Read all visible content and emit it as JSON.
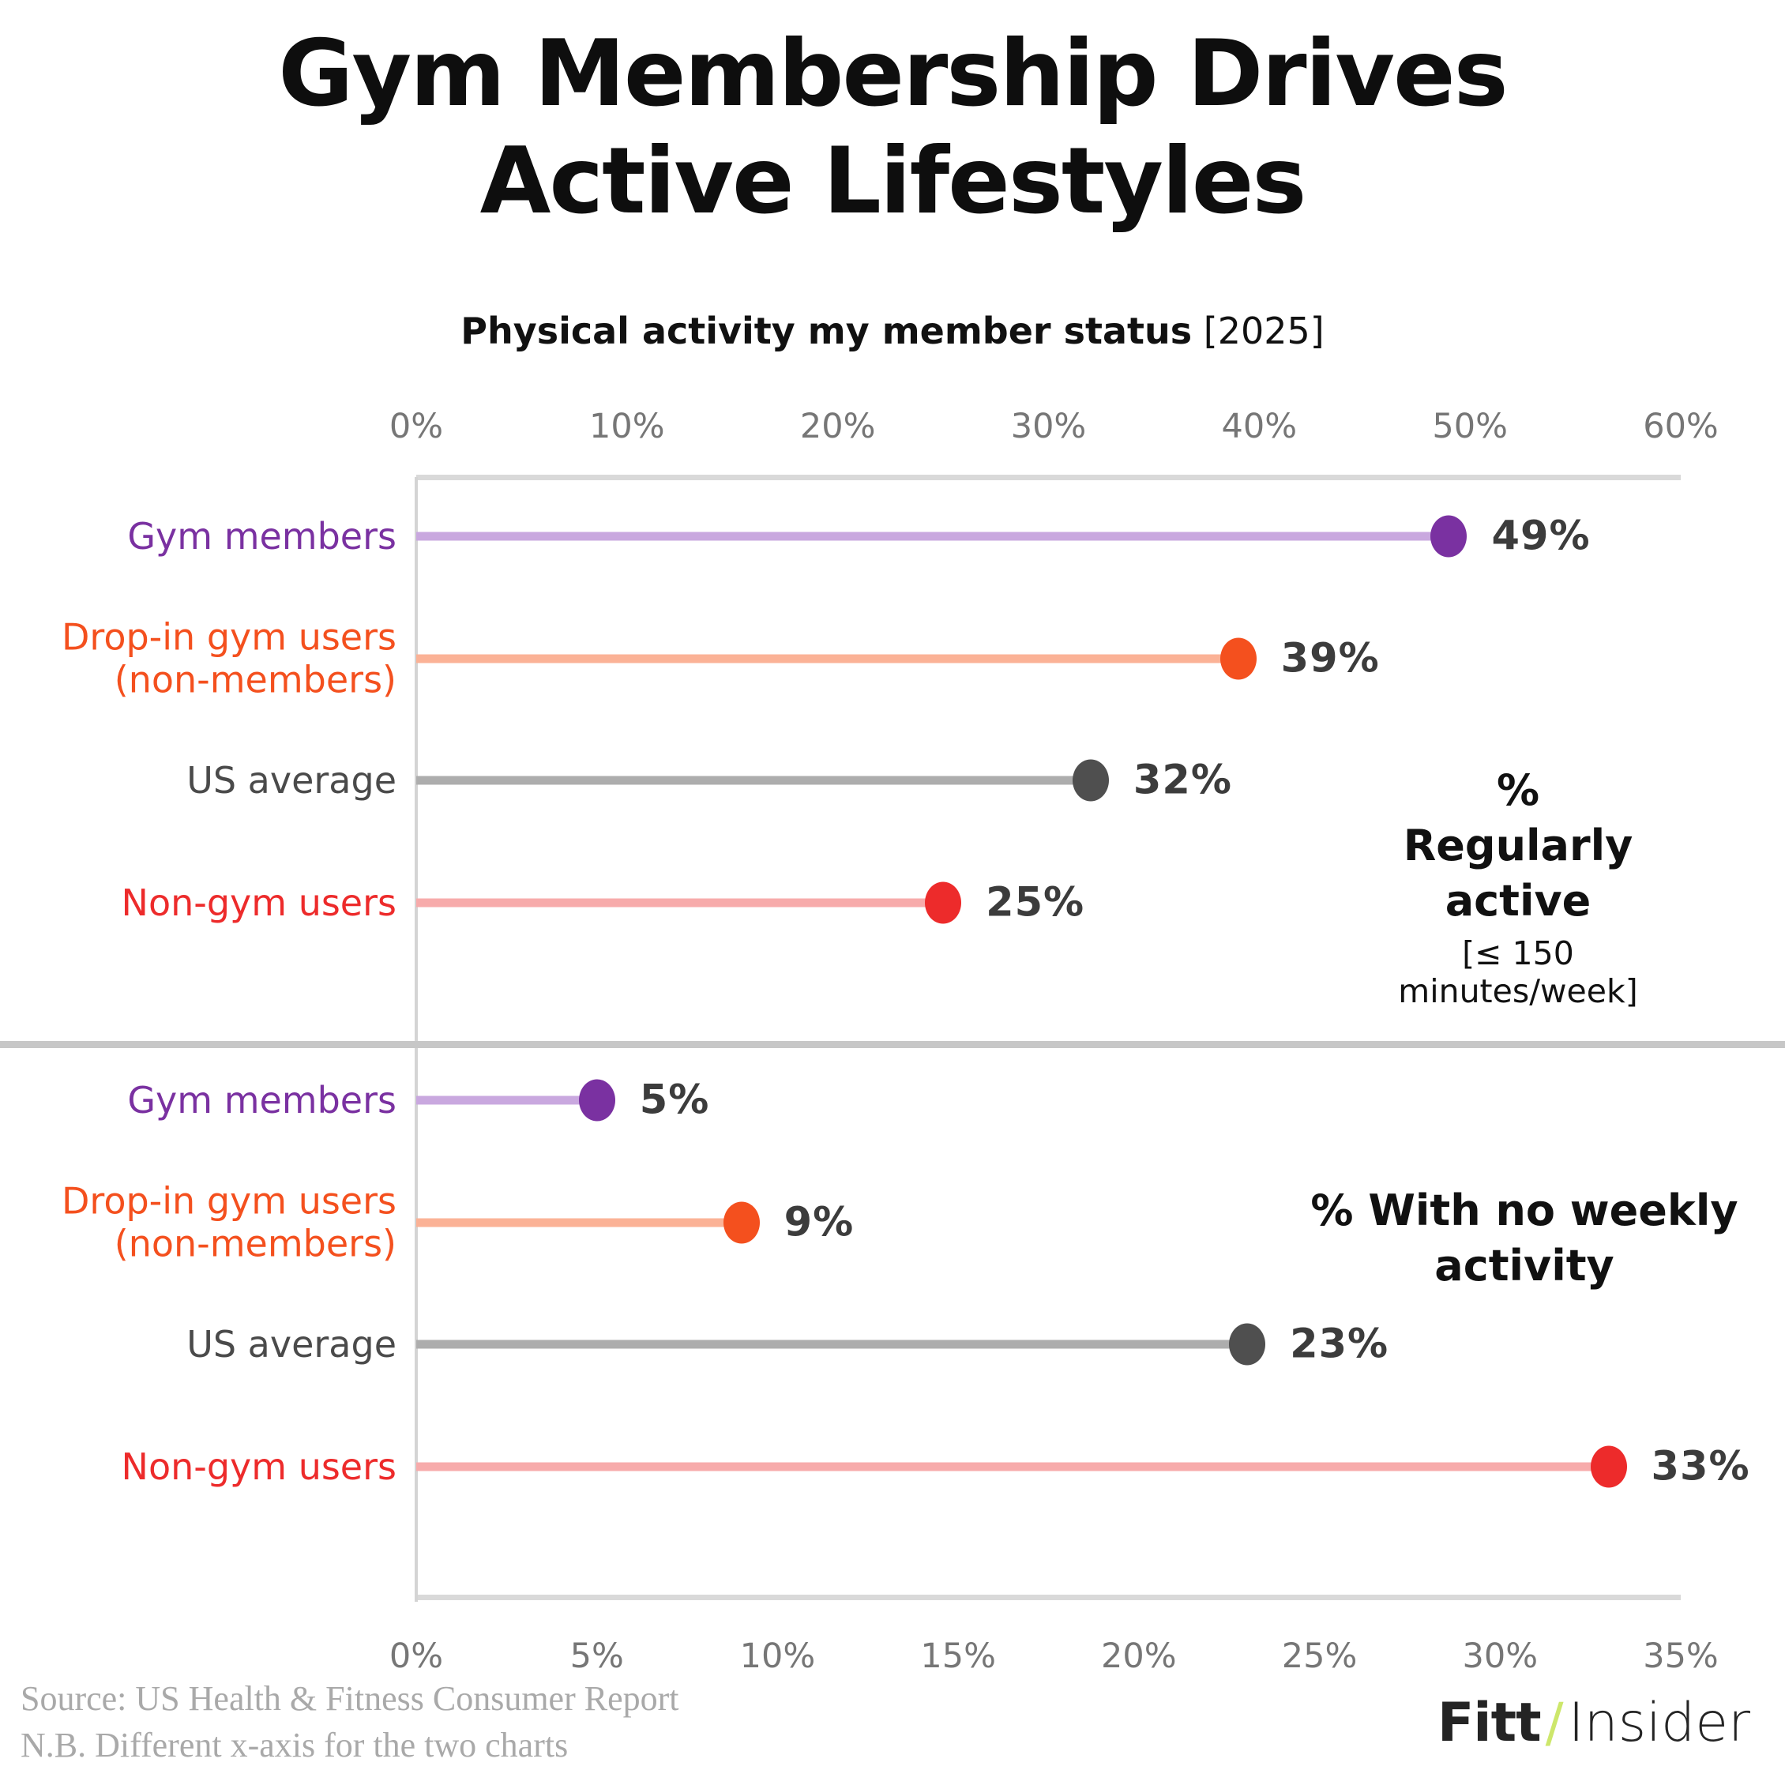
{
  "ui": {
    "title": "Gym Membership Drives Active Lifestyles",
    "subtitle_bold": "Physical activity my member status",
    "subtitle_suffix": " [2025]",
    "footer": {
      "line1": "Source: US Health & Fitness Consumer Report",
      "line2": "N.B. Different x-axis for the two charts"
    },
    "logo": {
      "fitt": "Fitt",
      "slash": "/",
      "insider": "Insider"
    },
    "colors": {
      "axis_line": "#d9d9d9",
      "divider": "#c7c7c7",
      "tick_text": "#767676",
      "value_text": "#3c3c3c",
      "title_text": "#0e0e0e",
      "footer_text": "#a9a9a9",
      "logo_slash": "#cde76b"
    }
  },
  "chart_data": [
    {
      "type": "bar",
      "style": "lollipop",
      "orientation": "horizontal",
      "title": "% Regularly active",
      "title_note": "[≤ 150 minutes/week]",
      "axis_position": "top",
      "xlim": [
        0,
        60
      ],
      "xtick_values": [
        0,
        10,
        20,
        30,
        40,
        50,
        60
      ],
      "xtick_labels": [
        "0%",
        "10%",
        "20%",
        "30%",
        "40%",
        "50%",
        "60%"
      ],
      "categories": [
        "Gym members",
        "Drop-in gym users (non-members)",
        "US average",
        "Non-gym users"
      ],
      "values": [
        49,
        39,
        32,
        25
      ],
      "points": [
        {
          "category": "Gym members",
          "value": 49,
          "value_label": "49%",
          "dot_color": "#7a31a1",
          "stem_color": "#c9a8df",
          "category_color": "#7a31a1"
        },
        {
          "category": "Drop-in gym users\n(non-members)",
          "value": 39,
          "value_label": "39%",
          "dot_color": "#f4501e",
          "stem_color": "#fbb296",
          "category_color": "#f4501e"
        },
        {
          "category": "US average",
          "value": 32,
          "value_label": "32%",
          "dot_color": "#4f4f4f",
          "stem_color": "#adadad",
          "category_color": "#4a4a4a"
        },
        {
          "category": "Non-gym users",
          "value": 25,
          "value_label": "25%",
          "dot_color": "#ed2b2b",
          "stem_color": "#f7abab",
          "category_color": "#ed2b2b"
        }
      ]
    },
    {
      "type": "bar",
      "style": "lollipop",
      "orientation": "horizontal",
      "title": "% With no weekly activity",
      "title_note": "",
      "axis_position": "bottom",
      "xlim": [
        0,
        35
      ],
      "xtick_values": [
        0,
        5,
        10,
        15,
        20,
        25,
        30,
        35
      ],
      "xtick_labels": [
        "0%",
        "5%",
        "10%",
        "15%",
        "20%",
        "25%",
        "30%",
        "35%"
      ],
      "categories": [
        "Gym members",
        "Drop-in gym users (non-members)",
        "US average",
        "Non-gym users"
      ],
      "values": [
        5,
        9,
        23,
        33
      ],
      "points": [
        {
          "category": "Gym members",
          "value": 5,
          "value_label": "5%",
          "dot_color": "#7a31a1",
          "stem_color": "#c9a8df",
          "category_color": "#7a31a1"
        },
        {
          "category": "Drop-in gym users\n(non-members)",
          "value": 9,
          "value_label": "9%",
          "dot_color": "#f4501e",
          "stem_color": "#fbb296",
          "category_color": "#f4501e"
        },
        {
          "category": "US average",
          "value": 23,
          "value_label": "23%",
          "dot_color": "#4f4f4f",
          "stem_color": "#adadad",
          "category_color": "#4a4a4a"
        },
        {
          "category": "Non-gym users",
          "value": 33,
          "value_label": "33%",
          "dot_color": "#ed2b2b",
          "stem_color": "#f7abab",
          "category_color": "#ed2b2b"
        }
      ]
    }
  ]
}
